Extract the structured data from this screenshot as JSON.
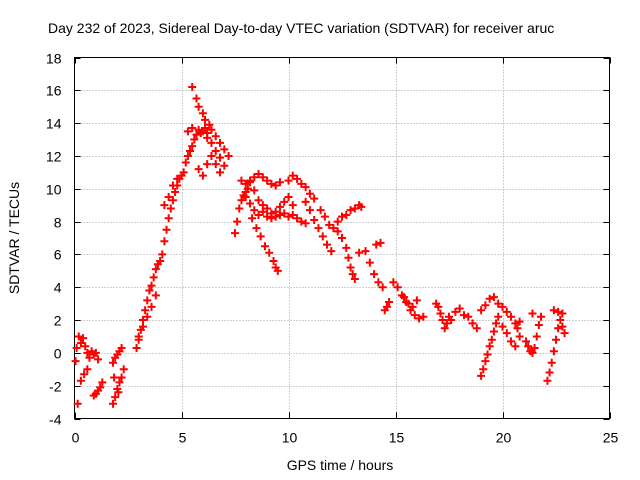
{
  "chart_data": {
    "type": "scatter",
    "title": "Day 232 of 2023, Sidereal Day-to-day VTEC variation (SDTVAR) for receiver aruc",
    "xlabel": "GPS time / hours",
    "ylabel": "SDTVAR / TECUs",
    "xlim": [
      0,
      25
    ],
    "ylim": [
      -4,
      18
    ],
    "xticks": [
      "0",
      "5",
      "10",
      "15",
      "20",
      "25"
    ],
    "yticks": [
      "-4",
      "-2",
      "0",
      "2",
      "4",
      "6",
      "8",
      "10",
      "12",
      "14",
      "16",
      "18"
    ],
    "grid": true,
    "marker": "+",
    "colors": {
      "marker": "#ff0000",
      "grid": "#a0a0a0",
      "axis": "#000000"
    },
    "series": [
      {
        "name": "SDTVAR",
        "points": [
          [
            0.05,
            -0.5
          ],
          [
            0.1,
            0.3
          ],
          [
            0.2,
            1.0
          ],
          [
            0.3,
            0.6
          ],
          [
            0.4,
            0.9
          ],
          [
            0.5,
            0.4
          ],
          [
            0.6,
            0.0
          ],
          [
            0.7,
            -0.3
          ],
          [
            0.8,
            0.1
          ],
          [
            0.9,
            -0.1
          ],
          [
            1.0,
            0.0
          ],
          [
            1.1,
            -0.4
          ],
          [
            0.15,
            -3.1
          ],
          [
            0.3,
            -1.7
          ],
          [
            0.45,
            -1.3
          ],
          [
            0.6,
            -1.0
          ],
          [
            0.9,
            -2.6
          ],
          [
            1.0,
            -2.5
          ],
          [
            1.1,
            -2.3
          ],
          [
            1.2,
            -2.1
          ],
          [
            1.3,
            -1.8
          ],
          [
            1.8,
            -0.6
          ],
          [
            1.9,
            -0.3
          ],
          [
            2.0,
            -0.1
          ],
          [
            2.1,
            0.1
          ],
          [
            2.2,
            0.3
          ],
          [
            1.8,
            -3.1
          ],
          [
            1.9,
            -2.7
          ],
          [
            2.0,
            -2.2
          ],
          [
            2.1,
            -1.8
          ],
          [
            2.2,
            -1.5
          ],
          [
            2.3,
            -1.0
          ],
          [
            1.85,
            -1.5
          ],
          [
            2.05,
            -2.4
          ],
          [
            2.9,
            0.3
          ],
          [
            3.0,
            0.8
          ],
          [
            3.1,
            1.4
          ],
          [
            3.2,
            2.0
          ],
          [
            3.3,
            2.6
          ],
          [
            3.4,
            3.2
          ],
          [
            3.5,
            3.8
          ],
          [
            3.6,
            4.1
          ],
          [
            3.7,
            4.6
          ],
          [
            3.8,
            5.1
          ],
          [
            3.9,
            5.4
          ],
          [
            4.0,
            5.6
          ],
          [
            3.0,
            1.0
          ],
          [
            3.2,
            1.6
          ],
          [
            3.4,
            2.2
          ],
          [
            3.6,
            2.8
          ],
          [
            3.8,
            3.5
          ],
          [
            4.1,
            6.0
          ],
          [
            4.2,
            6.8
          ],
          [
            4.3,
            7.5
          ],
          [
            4.4,
            8.2
          ],
          [
            4.5,
            8.8
          ],
          [
            4.6,
            9.3
          ],
          [
            4.7,
            9.8
          ],
          [
            4.8,
            10.2
          ],
          [
            4.9,
            10.6
          ],
          [
            5.0,
            10.8
          ],
          [
            4.2,
            9.0
          ],
          [
            4.4,
            9.5
          ],
          [
            4.6,
            10.2
          ],
          [
            4.8,
            10.6
          ],
          [
            5.1,
            11.0
          ],
          [
            5.2,
            11.6
          ],
          [
            5.3,
            12.0
          ],
          [
            5.4,
            12.3
          ],
          [
            5.5,
            12.6
          ],
          [
            5.6,
            13.0
          ],
          [
            5.7,
            13.3
          ],
          [
            5.8,
            13.6
          ],
          [
            5.9,
            13.4
          ],
          [
            6.0,
            13.5
          ],
          [
            6.1,
            13.7
          ],
          [
            6.2,
            13.4
          ],
          [
            5.5,
            16.2
          ],
          [
            5.7,
            15.5
          ],
          [
            5.8,
            15.0
          ],
          [
            6.0,
            14.6
          ],
          [
            6.1,
            14.2
          ],
          [
            6.3,
            13.9
          ],
          [
            6.4,
            13.6
          ],
          [
            6.6,
            13.2
          ],
          [
            6.8,
            12.8
          ],
          [
            7.0,
            12.4
          ],
          [
            7.2,
            12.0
          ],
          [
            5.3,
            13.5
          ],
          [
            5.5,
            13.7
          ],
          [
            6.2,
            13.1
          ],
          [
            6.4,
            12.8
          ],
          [
            6.6,
            12.3
          ],
          [
            6.8,
            11.9
          ],
          [
            7.0,
            11.4
          ],
          [
            5.8,
            11.2
          ],
          [
            6.0,
            10.8
          ],
          [
            6.2,
            11.5
          ],
          [
            6.4,
            12.0
          ],
          [
            6.6,
            11.5
          ],
          [
            6.8,
            11.0
          ],
          [
            7.5,
            7.3
          ],
          [
            7.6,
            8.0
          ],
          [
            7.7,
            8.8
          ],
          [
            7.8,
            9.3
          ],
          [
            7.9,
            9.6
          ],
          [
            8.0,
            9.8
          ],
          [
            8.1,
            10.0
          ],
          [
            8.2,
            10.4
          ],
          [
            8.4,
            10.7
          ],
          [
            8.6,
            10.9
          ],
          [
            8.8,
            10.7
          ],
          [
            9.0,
            10.5
          ],
          [
            9.2,
            10.3
          ],
          [
            9.4,
            10.2
          ],
          [
            9.6,
            10.4
          ],
          [
            7.8,
            10.5
          ],
          [
            8.0,
            10.3
          ],
          [
            8.2,
            10.5
          ],
          [
            8.4,
            9.9
          ],
          [
            8.6,
            9.3
          ],
          [
            8.8,
            9.0
          ],
          [
            9.0,
            8.8
          ],
          [
            9.2,
            8.5
          ],
          [
            9.4,
            8.6
          ],
          [
            9.6,
            8.9
          ],
          [
            9.8,
            9.2
          ],
          [
            10.0,
            9.5
          ],
          [
            10.2,
            9.0
          ],
          [
            8.0,
            9.5
          ],
          [
            8.2,
            9.1
          ],
          [
            8.4,
            8.7
          ],
          [
            8.6,
            8.4
          ],
          [
            8.8,
            8.6
          ],
          [
            9.0,
            8.3
          ],
          [
            9.2,
            8.2
          ],
          [
            9.4,
            8.3
          ],
          [
            9.6,
            8.4
          ],
          [
            9.8,
            8.5
          ],
          [
            10.0,
            8.3
          ],
          [
            10.2,
            8.4
          ],
          [
            10.4,
            8.2
          ],
          [
            10.6,
            8.0
          ],
          [
            10.8,
            7.9
          ],
          [
            8.3,
            8.2
          ],
          [
            8.5,
            7.6
          ],
          [
            8.7,
            7.1
          ],
          [
            8.9,
            6.5
          ],
          [
            9.1,
            6.1
          ],
          [
            9.3,
            5.6
          ],
          [
            9.4,
            5.2
          ],
          [
            9.5,
            5.0
          ],
          [
            10.0,
            10.5
          ],
          [
            10.2,
            10.8
          ],
          [
            10.4,
            10.6
          ],
          [
            10.6,
            10.3
          ],
          [
            10.8,
            10.1
          ],
          [
            11.0,
            9.7
          ],
          [
            11.2,
            9.4
          ],
          [
            10.8,
            9.2
          ],
          [
            11.0,
            8.7
          ],
          [
            11.2,
            8.1
          ],
          [
            11.4,
            7.6
          ],
          [
            11.6,
            7.1
          ],
          [
            11.8,
            6.6
          ],
          [
            12.0,
            6.2
          ],
          [
            11.5,
            8.7
          ],
          [
            11.7,
            8.3
          ],
          [
            11.9,
            7.8
          ],
          [
            12.1,
            7.6
          ],
          [
            12.3,
            8.0
          ],
          [
            12.5,
            8.3
          ],
          [
            12.7,
            8.4
          ],
          [
            12.9,
            8.7
          ],
          [
            13.1,
            8.8
          ],
          [
            13.3,
            9.0
          ],
          [
            13.4,
            8.9
          ],
          [
            12.3,
            7.4
          ],
          [
            12.5,
            7.0
          ],
          [
            12.7,
            6.4
          ],
          [
            12.8,
            5.8
          ],
          [
            12.9,
            5.2
          ],
          [
            13.0,
            4.8
          ],
          [
            13.1,
            4.5
          ],
          [
            13.3,
            6.1
          ],
          [
            13.6,
            6.2
          ],
          [
            13.8,
            5.5
          ],
          [
            14.0,
            4.8
          ],
          [
            14.2,
            4.3
          ],
          [
            14.4,
            4.0
          ],
          [
            14.1,
            6.6
          ],
          [
            14.3,
            6.7
          ],
          [
            14.5,
            2.6
          ],
          [
            14.6,
            2.8
          ],
          [
            14.7,
            3.1
          ],
          [
            14.9,
            4.3
          ],
          [
            15.1,
            4.0
          ],
          [
            15.3,
            3.5
          ],
          [
            15.5,
            3.1
          ],
          [
            15.7,
            2.6
          ],
          [
            15.9,
            2.3
          ],
          [
            16.1,
            2.1
          ],
          [
            16.3,
            2.2
          ],
          [
            15.4,
            3.4
          ],
          [
            15.6,
            3.0
          ],
          [
            15.8,
            2.8
          ],
          [
            16.0,
            3.2
          ],
          [
            16.9,
            3.0
          ],
          [
            17.0,
            2.8
          ],
          [
            17.1,
            2.4
          ],
          [
            17.2,
            2.0
          ],
          [
            17.3,
            1.5
          ],
          [
            17.4,
            1.8
          ],
          [
            17.5,
            2.2
          ],
          [
            17.6,
            2.0
          ],
          [
            17.8,
            2.5
          ],
          [
            18.0,
            2.7
          ],
          [
            18.2,
            2.3
          ],
          [
            18.4,
            2.2
          ],
          [
            18.6,
            1.8
          ],
          [
            18.8,
            1.5
          ],
          [
            19.0,
            2.6
          ],
          [
            19.2,
            2.9
          ],
          [
            19.4,
            3.3
          ],
          [
            19.6,
            3.4
          ],
          [
            19.8,
            3.0
          ],
          [
            20.0,
            2.8
          ],
          [
            20.2,
            2.5
          ],
          [
            20.4,
            2.2
          ],
          [
            20.6,
            1.8
          ],
          [
            20.7,
            1.5
          ],
          [
            20.8,
            1.0
          ],
          [
            19.0,
            -1.4
          ],
          [
            19.1,
            -1.0
          ],
          [
            19.2,
            -0.5
          ],
          [
            19.3,
            -0.1
          ],
          [
            19.4,
            0.4
          ],
          [
            19.5,
            0.8
          ],
          [
            19.6,
            1.3
          ],
          [
            19.7,
            1.8
          ],
          [
            19.8,
            2.2
          ],
          [
            20.0,
            1.6
          ],
          [
            20.2,
            1.2
          ],
          [
            20.4,
            0.7
          ],
          [
            20.6,
            0.4
          ],
          [
            20.8,
            1.9
          ],
          [
            21.1,
            0.7
          ],
          [
            21.2,
            0.4
          ],
          [
            21.3,
            0.1
          ],
          [
            21.4,
            0.0
          ],
          [
            21.5,
            0.3
          ],
          [
            21.6,
            1.0
          ],
          [
            21.7,
            1.7
          ],
          [
            21.8,
            2.2
          ],
          [
            21.4,
            2.4
          ],
          [
            22.1,
            -1.7
          ],
          [
            22.2,
            -1.2
          ],
          [
            22.3,
            -0.6
          ],
          [
            22.4,
            0.1
          ],
          [
            22.5,
            0.8
          ],
          [
            22.6,
            1.5
          ],
          [
            22.7,
            2.0
          ],
          [
            22.8,
            2.4
          ],
          [
            22.4,
            2.6
          ],
          [
            22.6,
            2.5
          ],
          [
            22.8,
            1.6
          ],
          [
            22.9,
            1.2
          ]
        ]
      }
    ]
  }
}
